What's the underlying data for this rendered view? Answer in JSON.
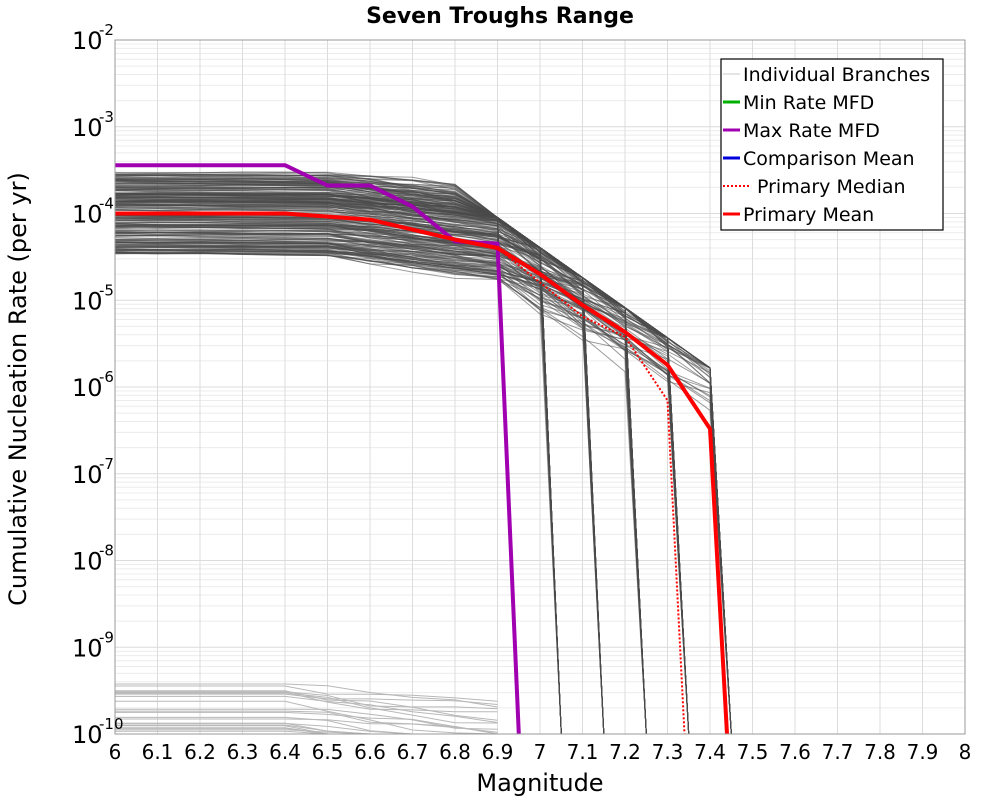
{
  "chart_data": {
    "type": "line",
    "title": "Seven Troughs Range",
    "xlabel": "Magnitude",
    "ylabel": "Cumulative Nucleation Rate (per yr)",
    "xlim": [
      6,
      8
    ],
    "ylim": [
      1e-10,
      0.01
    ],
    "y_scale": "log",
    "grid": true,
    "legend_placement": "top-right",
    "x_ticks": [
      "6",
      "6.1",
      "6.2",
      "6.3",
      "6.4",
      "6.5",
      "6.6",
      "6.7",
      "6.8",
      "6.9",
      "7",
      "7.1",
      "7.2",
      "7.3",
      "7.4",
      "7.5",
      "7.6",
      "7.7",
      "7.8",
      "7.9",
      "8"
    ],
    "y_ticks": [
      {
        "base": "10",
        "exp": "-2"
      },
      {
        "base": "10",
        "exp": "-3"
      },
      {
        "base": "10",
        "exp": "-4"
      },
      {
        "base": "10",
        "exp": "-5"
      },
      {
        "base": "10",
        "exp": "-6"
      },
      {
        "base": "10",
        "exp": "-7"
      },
      {
        "base": "10",
        "exp": "-8"
      },
      {
        "base": "10",
        "exp": "-9"
      },
      {
        "base": "10",
        "exp": "-10"
      }
    ],
    "legend": [
      {
        "label": "Individual Branches",
        "color": "#c8c8c8",
        "style": "solid"
      },
      {
        "label": "Min Rate MFD",
        "color": "#00b000",
        "style": "solid"
      },
      {
        "label": "Max Rate MFD",
        "color": "#a000b0",
        "style": "solid"
      },
      {
        "label": "Comparison Mean",
        "color": "#0000dd",
        "style": "solid"
      },
      {
        "label": "Primary Median",
        "color": "#ff0000",
        "style": "dotted"
      },
      {
        "label": "Primary Mean",
        "color": "#ff0000",
        "style": "solid"
      }
    ],
    "series": [
      {
        "name": "Max Rate MFD",
        "color": "#a000b0",
        "x": [
          6.0,
          6.4,
          6.5,
          6.6,
          6.7,
          6.8,
          6.9,
          6.95
        ],
        "y": [
          0.00036,
          0.00036,
          0.00021,
          0.00021,
          0.00012,
          4.8e-05,
          4.5e-05,
          1e-10
        ]
      },
      {
        "name": "Primary Mean",
        "color": "#ff0000",
        "x": [
          6.0,
          6.4,
          6.6,
          6.8,
          6.9,
          7.0,
          7.1,
          7.2,
          7.3,
          7.4,
          7.44
        ],
        "y": [
          0.0001,
          0.0001,
          8.5e-05,
          5e-05,
          4e-05,
          2e-05,
          8.8e-06,
          4.3e-06,
          1.8e-06,
          3.3e-07,
          1e-10
        ]
      },
      {
        "name": "Primary Median",
        "color": "#ff0000",
        "x": [
          6.0,
          6.4,
          6.6,
          6.8,
          6.9,
          7.0,
          7.1,
          7.2,
          7.3,
          7.34
        ],
        "y": [
          0.0001,
          0.0001,
          8.5e-05,
          5e-05,
          4e-05,
          1.6e-05,
          6.5e-06,
          3.8e-06,
          7e-07,
          1e-10
        ]
      }
    ],
    "individual_branches": {
      "color": "#4a4a4a",
      "rate_range_at_6": [
        3.5e-05,
        0.0003
      ],
      "cutoff_magnitudes": [
        6.95,
        7.05,
        7.15,
        7.25,
        7.35,
        7.45
      ],
      "low_band_range": [
        1e-10,
        4e-10
      ]
    }
  }
}
